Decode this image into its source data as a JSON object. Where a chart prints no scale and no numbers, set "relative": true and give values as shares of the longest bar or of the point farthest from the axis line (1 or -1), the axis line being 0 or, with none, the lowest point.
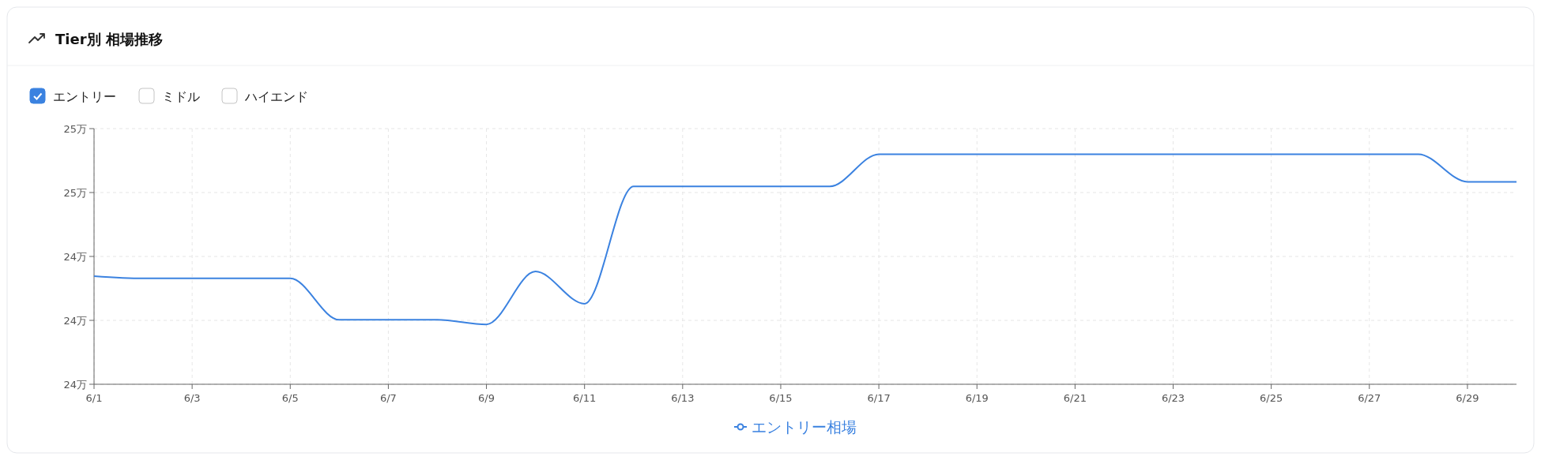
{
  "chart_data": {
    "type": "line",
    "title": "Tier別 相場推移",
    "annotations": [
      "エントリー",
      "ミドル",
      "ハイエンド",
      "25万",
      "25万",
      "24万",
      "24万",
      "24万"
    ],
    "relative": true,
    "x": [
      "--06-01",
      "--06-02",
      "--06-03",
      "--06-04",
      "--06-05",
      "--06-06",
      "--06-07",
      "--06-08",
      "--06-09",
      "--06-10",
      "--06-11",
      "--06-12",
      "--06-13",
      "--06-14",
      "--06-15",
      "--06-16",
      "--06-17",
      "--06-18",
      "--06-19",
      "--06-20",
      "--06-21",
      "--06-22",
      "--06-23",
      "--06-24",
      "--06-25",
      "--06-26",
      "--06-27",
      "--06-28",
      "--06-29",
      "--06-30"
    ],
    "series": [
      {
        "name": "エントリー相場",
        "color": "#3b82e0",
        "values": [
          0.47,
          0.46,
          0.46,
          0.46,
          0.46,
          0.28,
          0.28,
          0.28,
          0.26,
          0.49,
          0.35,
          0.86,
          0.86,
          0.86,
          0.86,
          0.86,
          1,
          1,
          1,
          1,
          1,
          1,
          1,
          1,
          1,
          1,
          1,
          1,
          0.88,
          0.88
        ]
      }
    ],
    "xlim": [
      "--06-01",
      "--06-30"
    ],
    "xticks": [
      {
        "value": "--06-01",
        "label": "6/1"
      },
      {
        "value": "--06-03",
        "label": "6/3"
      },
      {
        "value": "--06-05",
        "label": "6/5"
      },
      {
        "value": "--06-07",
        "label": "6/7"
      },
      {
        "value": "--06-09",
        "label": "6/9"
      },
      {
        "value": "--06-11",
        "label": "6/11"
      },
      {
        "value": "--06-13",
        "label": "6/13"
      },
      {
        "value": "--06-15",
        "label": "6/15"
      },
      {
        "value": "--06-17",
        "label": "6/17"
      },
      {
        "value": "--06-19",
        "label": "6/19"
      },
      {
        "value": "--06-21",
        "label": "6/21"
      },
      {
        "value": "--06-23",
        "label": "6/23"
      },
      {
        "value": "--06-25",
        "label": "6/25"
      },
      {
        "value": "--06-27",
        "label": "6/27"
      },
      {
        "value": "--06-29",
        "label": "6/29"
      }
    ],
    "grid": true,
    "legend": "bottom",
    "marker": "none",
    "line_style": "solid"
  }
}
